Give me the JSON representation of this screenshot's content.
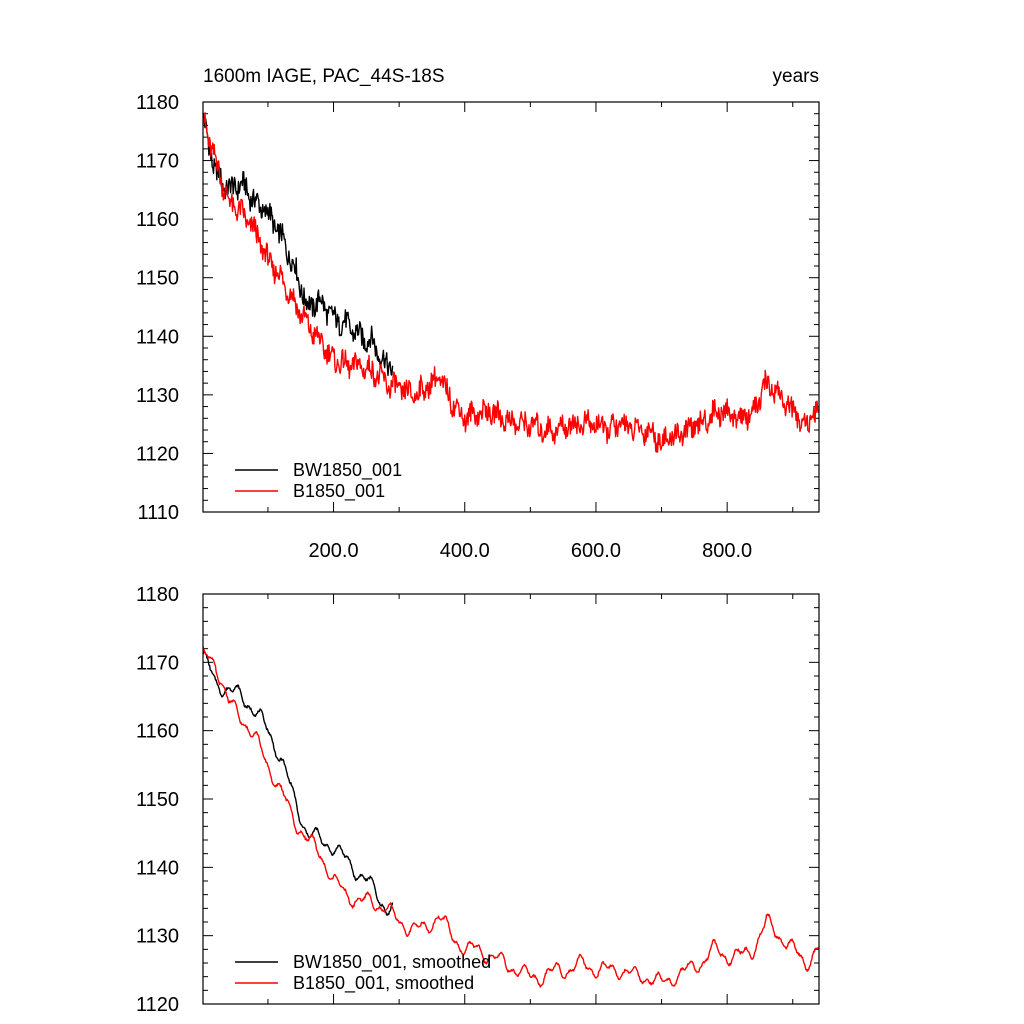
{
  "chart_data": [
    {
      "type": "line",
      "title": "1600m IAGE, PAC_44S-18S",
      "title_right": "years",
      "xlim": [
        1,
        940
      ],
      "ylim": [
        1110,
        1180
      ],
      "y_ticks": [
        "1110",
        "1120",
        "1130",
        "1140",
        "1150",
        "1160",
        "1170",
        "1180"
      ],
      "x_ticks": [
        "200.0",
        "400.0",
        "600.0",
        "800.0"
      ],
      "legend_position": "bottom-left",
      "series": [
        {
          "name": "BW1850_001",
          "color": "#000000",
          "smoothed": false,
          "x": [
            1,
            20,
            40,
            60,
            80,
            100,
            120,
            140,
            160,
            180,
            200,
            220,
            240,
            260,
            280,
            290
          ],
          "y": [
            1177,
            1168,
            1165,
            1166,
            1163,
            1161,
            1157,
            1152,
            1145,
            1146,
            1143,
            1142,
            1140,
            1139,
            1135,
            1135
          ]
        },
        {
          "name": "B1850_001",
          "color": "#ff0000",
          "smoothed": false,
          "x": [
            1,
            20,
            40,
            60,
            80,
            100,
            120,
            140,
            160,
            180,
            200,
            220,
            240,
            260,
            280,
            300,
            320,
            340,
            360,
            380,
            400,
            420,
            440,
            460,
            480,
            500,
            520,
            540,
            560,
            580,
            600,
            620,
            640,
            660,
            680,
            700,
            720,
            740,
            760,
            780,
            800,
            820,
            840,
            860,
            880,
            900,
            920,
            940
          ],
          "y": [
            1177,
            1170,
            1163,
            1161,
            1158,
            1153,
            1150,
            1146,
            1142,
            1139,
            1136,
            1135,
            1135,
            1134,
            1132,
            1131,
            1130,
            1131,
            1133,
            1129,
            1126,
            1127,
            1127,
            1126,
            1125,
            1125,
            1124,
            1124,
            1125,
            1125,
            1125,
            1124,
            1125,
            1124,
            1124,
            1122,
            1123,
            1124,
            1125,
            1127,
            1127,
            1126,
            1127,
            1132,
            1130,
            1127,
            1125,
            1127
          ]
        }
      ]
    },
    {
      "type": "line",
      "xlim": [
        1,
        940
      ],
      "ylim": [
        1120,
        1180
      ],
      "y_ticks": [
        "1120",
        "1130",
        "1140",
        "1150",
        "1160",
        "1170",
        "1180"
      ],
      "legend_position": "bottom-left",
      "series": [
        {
          "name": "BW1850_001, smoothed",
          "color": "#000000",
          "smoothed": true,
          "x": [
            1,
            20,
            40,
            60,
            80,
            100,
            120,
            140,
            160,
            180,
            200,
            220,
            240,
            260,
            280,
            290
          ],
          "y": [
            1171,
            1167,
            1166,
            1165,
            1163,
            1160,
            1156,
            1150,
            1145,
            1144,
            1143,
            1141,
            1139,
            1137,
            1134,
            1134
          ]
        },
        {
          "name": "B1850_001, smoothed",
          "color": "#ff0000",
          "smoothed": true,
          "x": [
            1,
            20,
            40,
            60,
            80,
            100,
            120,
            140,
            160,
            180,
            200,
            220,
            240,
            260,
            280,
            300,
            320,
            340,
            360,
            380,
            400,
            420,
            440,
            460,
            480,
            500,
            520,
            540,
            560,
            580,
            600,
            620,
            640,
            660,
            680,
            700,
            720,
            740,
            760,
            780,
            800,
            820,
            840,
            860,
            880,
            900,
            920,
            940
          ],
          "y": [
            1171,
            1170,
            1164,
            1162,
            1159,
            1155,
            1151,
            1147,
            1144,
            1142,
            1138,
            1136,
            1135,
            1135,
            1134,
            1132,
            1131,
            1131,
            1133,
            1130,
            1128,
            1128,
            1127,
            1126,
            1125,
            1124,
            1124,
            1125,
            1125,
            1126,
            1125,
            1125,
            1125,
            1124,
            1124,
            1123,
            1124,
            1125,
            1126,
            1128,
            1127,
            1127,
            1128,
            1132,
            1130,
            1128,
            1126,
            1128
          ]
        }
      ]
    }
  ]
}
